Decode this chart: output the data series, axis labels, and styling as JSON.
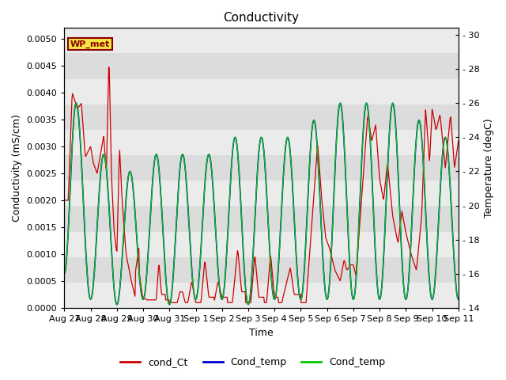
{
  "title": "Conductivity",
  "xlabel": "Time",
  "ylabel_left": "Conductivity (mS/cm)",
  "ylabel_right": "Temperature (degC)",
  "ylim_left": [
    0.0,
    0.0052
  ],
  "ylim_right": [
    14,
    30.4
  ],
  "background_color": "#ffffff",
  "plot_bg_color": "#e8e8e8",
  "band_colors": [
    "#ebebeb",
    "#dcdcdc"
  ],
  "wp_met_label": "WP_met",
  "wp_met_bg": "#f5e642",
  "wp_met_border": "#8b0000",
  "legend_entries": [
    "cond_Ct",
    "Cond_temp",
    "Cond_temp"
  ],
  "legend_colors": [
    "#cc0000",
    "#0000cc",
    "#00cc00"
  ],
  "title_fontsize": 11,
  "axis_label_fontsize": 9,
  "tick_fontsize": 8,
  "yticks_left": [
    0.0,
    0.0005,
    0.001,
    0.0015,
    0.002,
    0.0025,
    0.003,
    0.0035,
    0.004,
    0.0045,
    0.005
  ],
  "yticks_right": [
    14,
    16,
    18,
    20,
    22,
    24,
    26,
    28,
    30
  ],
  "tick_labels_right": [
    "- 14",
    "- 16",
    "- 18",
    "- 20",
    "- 22",
    "- 24",
    "- 26",
    "- 28",
    "- 30"
  ],
  "xtick_labels": [
    "Aug 27",
    "Aug 28",
    "Aug 29",
    "Aug 30",
    "Aug 31",
    "Sep 1",
    "Sep 2",
    "Sep 3",
    "Sep 4",
    "Sep 5",
    "Sep 6",
    "Sep 7",
    "Sep 8",
    "Sep 9",
    "Sep 10",
    "Sep 11"
  ]
}
